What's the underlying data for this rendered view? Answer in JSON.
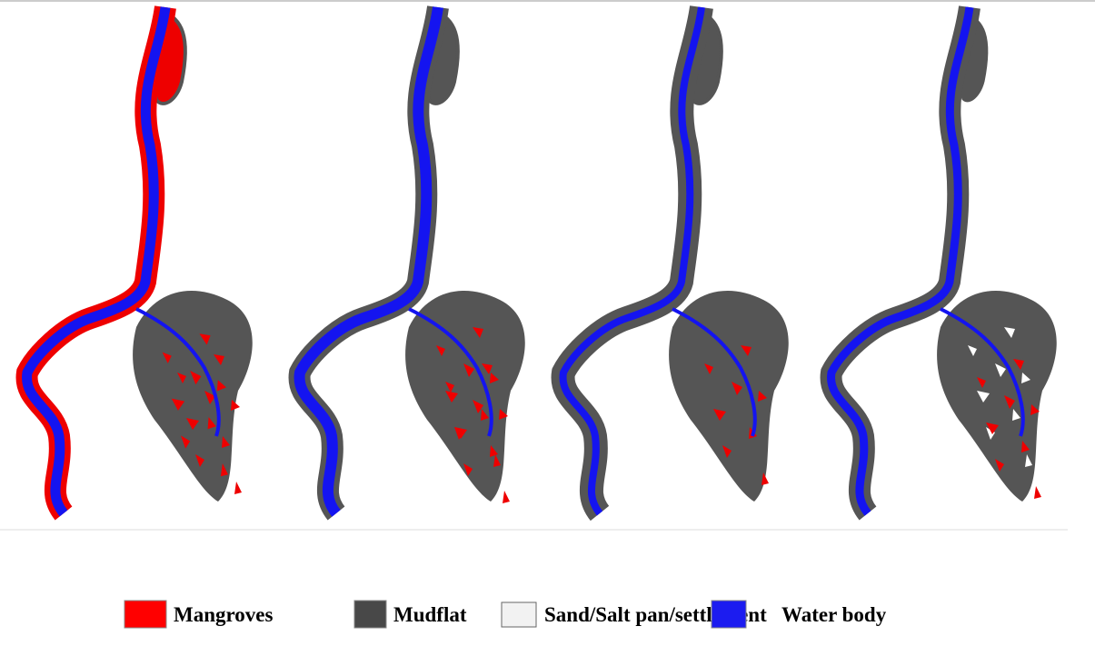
{
  "legend": {
    "items": [
      {
        "label": "Mangroves"
      },
      {
        "label": "Mudflat"
      },
      {
        "label": "Sand/Salt pan/settlement"
      },
      {
        "label": "Water body"
      }
    ]
  }
}
